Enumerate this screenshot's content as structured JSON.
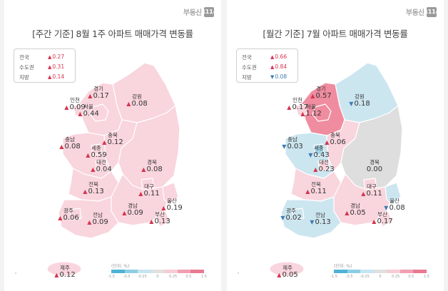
{
  "brand": {
    "text": "부동산",
    "box": "R114"
  },
  "colors": {
    "up_strong": "#ef8ca0",
    "up_mid": "#f6c2cd",
    "up_light": "#f9d5dd",
    "neutral": "#dedede",
    "down_light": "#cce6f0",
    "down_mid": "#a4d3e6",
    "down_strong": "#7cc0dc",
    "scale": [
      "#4fb3d5",
      "#8dcde4",
      "#c5e6f1",
      "#e0e0e0",
      "#f7ccd5",
      "#f1a0b1",
      "#e97b91"
    ]
  },
  "weekly": {
    "title": "[주간 기준] 8월 1주 아파트 매매가격 변동률",
    "legend": [
      {
        "label": "전국",
        "value": "0.27",
        "dir": "up"
      },
      {
        "label": "수도권",
        "value": "0.31",
        "dir": "up"
      },
      {
        "label": "지방",
        "value": "0.14",
        "dir": "up"
      }
    ],
    "regions": [
      {
        "name": "경기",
        "value": "0.17",
        "dir": "up",
        "level": "up_light"
      },
      {
        "name": "인천",
        "value": "0.09",
        "dir": "up",
        "level": "up_light"
      },
      {
        "name": "서울",
        "value": "0.44",
        "dir": "up",
        "level": "up_light"
      },
      {
        "name": "강원",
        "value": "0.08",
        "dir": "up",
        "level": "up_light"
      },
      {
        "name": "충남",
        "value": "0.08",
        "dir": "up",
        "level": "up_light"
      },
      {
        "name": "충북",
        "value": "0.12",
        "dir": "up",
        "level": "up_light"
      },
      {
        "name": "세종",
        "value": "0.59",
        "dir": "up",
        "level": "up_light"
      },
      {
        "name": "대전",
        "value": "0.04",
        "dir": "up",
        "level": "up_light"
      },
      {
        "name": "경북",
        "value": "0.08",
        "dir": "up",
        "level": "up_light"
      },
      {
        "name": "전북",
        "value": "0.13",
        "dir": "up",
        "level": "up_light"
      },
      {
        "name": "대구",
        "value": "0.11",
        "dir": "up",
        "level": "up_light"
      },
      {
        "name": "울산",
        "value": "0.19",
        "dir": "up",
        "level": "up_light"
      },
      {
        "name": "광주",
        "value": "0.06",
        "dir": "up",
        "level": "up_light"
      },
      {
        "name": "경남",
        "value": "0.09",
        "dir": "up",
        "level": "up_light"
      },
      {
        "name": "전남",
        "value": "0.09",
        "dir": "up",
        "level": "up_light"
      },
      {
        "name": "부산",
        "value": "0.13",
        "dir": "up",
        "level": "up_light"
      },
      {
        "name": "제주",
        "value": "0.12",
        "dir": "up",
        "level": "up_light"
      }
    ],
    "scale_unit": "(단위: %)",
    "scale_ticks": [
      "-1.5",
      "-0.5",
      "-0.25",
      "0",
      "0.25",
      "0.5",
      "1.5"
    ]
  },
  "monthly": {
    "title": "[월간 기준] 7월 아파트 매매가격 변동률",
    "legend": [
      {
        "label": "전국",
        "value": "0.66",
        "dir": "up"
      },
      {
        "label": "수도권",
        "value": "0.84",
        "dir": "up"
      },
      {
        "label": "지방",
        "value": "0.08",
        "dir": "down"
      }
    ],
    "regions": [
      {
        "name": "경기",
        "value": "0.57",
        "dir": "up",
        "level": "up_strong"
      },
      {
        "name": "인천",
        "value": "0.17",
        "dir": "up",
        "level": "up_light"
      },
      {
        "name": "서울",
        "value": "1.12",
        "dir": "up",
        "level": "up_strong"
      },
      {
        "name": "강원",
        "value": "0.18",
        "dir": "down",
        "level": "down_light"
      },
      {
        "name": "충남",
        "value": "0.03",
        "dir": "down",
        "level": "down_light"
      },
      {
        "name": "충북",
        "value": "0.06",
        "dir": "up",
        "level": "up_light"
      },
      {
        "name": "세종",
        "value": "0.43",
        "dir": "down",
        "level": "down_mid"
      },
      {
        "name": "대전",
        "value": "0.23",
        "dir": "up",
        "level": "up_light"
      },
      {
        "name": "경북",
        "value": "0.00",
        "dir": "none",
        "level": "neutral"
      },
      {
        "name": "전북",
        "value": "0.11",
        "dir": "up",
        "level": "up_light"
      },
      {
        "name": "대구",
        "value": "0.11",
        "dir": "up",
        "level": "up_light"
      },
      {
        "name": "울산",
        "value": "0.08",
        "dir": "down",
        "level": "down_light"
      },
      {
        "name": "광주",
        "value": "0.02",
        "dir": "down",
        "level": "down_light"
      },
      {
        "name": "경남",
        "value": "0.05",
        "dir": "up",
        "level": "up_light"
      },
      {
        "name": "전남",
        "value": "0.13",
        "dir": "down",
        "level": "down_light"
      },
      {
        "name": "부산",
        "value": "0.17",
        "dir": "up",
        "level": "up_light"
      },
      {
        "name": "제주",
        "value": "0.05",
        "dir": "up",
        "level": "up_light"
      }
    ],
    "scale_unit": "(단위: %)",
    "scale_ticks": [
      "-1.5",
      "-0.5",
      "-0.25",
      "0",
      "0.25",
      "0.5",
      "1.5"
    ]
  }
}
